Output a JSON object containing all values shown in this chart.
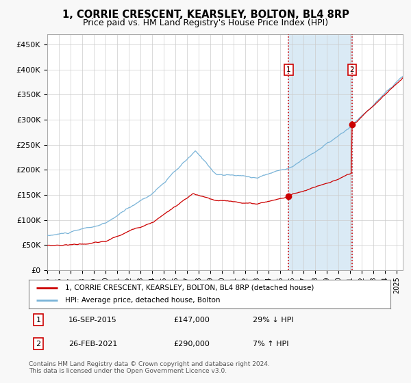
{
  "title": "1, CORRIE CRESCENT, KEARSLEY, BOLTON, BL4 8RP",
  "subtitle": "Price paid vs. HM Land Registry's House Price Index (HPI)",
  "title_fontsize": 10.5,
  "subtitle_fontsize": 9,
  "ylabel_ticks": [
    "£0",
    "£50K",
    "£100K",
    "£150K",
    "£200K",
    "£250K",
    "£300K",
    "£350K",
    "£400K",
    "£450K"
  ],
  "ytick_values": [
    0,
    50000,
    100000,
    150000,
    200000,
    250000,
    300000,
    350000,
    400000,
    450000
  ],
  "ylim": [
    0,
    470000
  ],
  "xlim_start": 1995.0,
  "xlim_end": 2025.5,
  "hpi_color": "#7ab4d8",
  "price_color": "#cc0000",
  "dashed_line_color": "#cc0000",
  "shaded_region_color": "#daeaf5",
  "marker1_date": 2015.71,
  "marker1_price": 147000,
  "marker1_label": "16-SEP-2015",
  "marker1_amount": "£147,000",
  "marker1_hpi": "29% ↓ HPI",
  "marker2_date": 2021.15,
  "marker2_price": 290000,
  "marker2_label": "26-FEB-2021",
  "marker2_amount": "£290,000",
  "marker2_hpi": "7% ↑ HPI",
  "legend_line1": "1, CORRIE CRESCENT, KEARSLEY, BOLTON, BL4 8RP (detached house)",
  "legend_line2": "HPI: Average price, detached house, Bolton",
  "footnote": "Contains HM Land Registry data © Crown copyright and database right 2024.\nThis data is licensed under the Open Government Licence v3.0.",
  "background_color": "#f8f8f8",
  "plot_bg_color": "#ffffff",
  "grid_color": "#cccccc"
}
